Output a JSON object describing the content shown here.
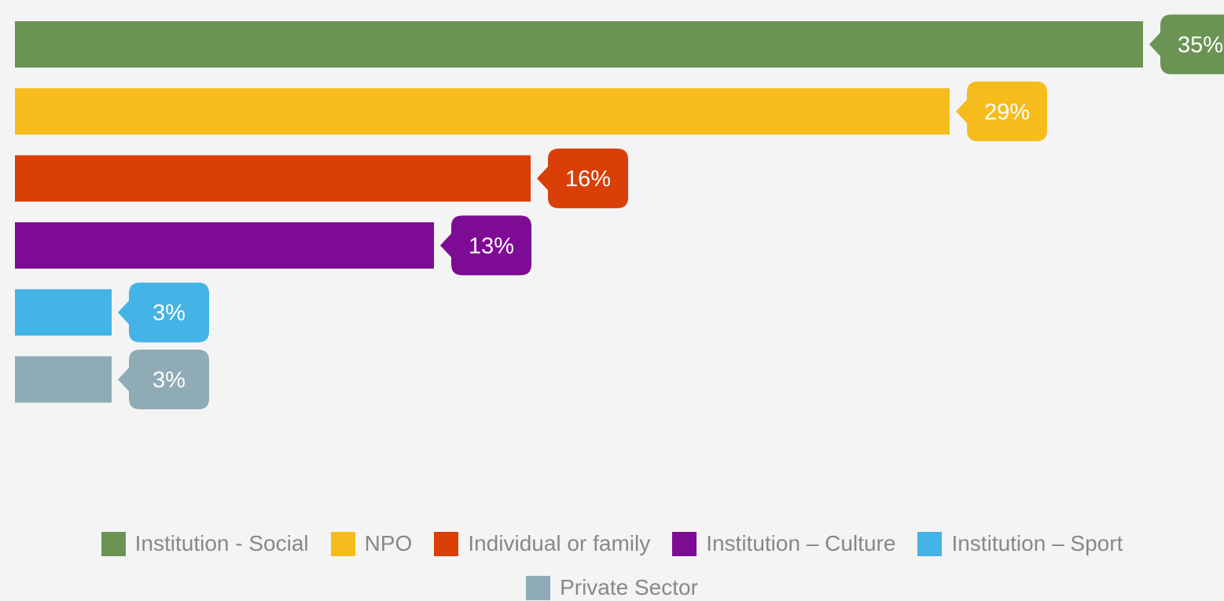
{
  "chart_data": {
    "type": "bar",
    "orientation": "horizontal",
    "categories": [
      "Institution - Social",
      "NPO",
      "Individual or family",
      "Institution – Culture",
      "Institution – Sport",
      "Private Sector"
    ],
    "values": [
      35,
      29,
      16,
      13,
      3,
      3
    ],
    "data_labels": [
      "35%",
      "29%",
      "16%",
      "13%",
      "3%",
      "3%"
    ],
    "colors": [
      "#6b9454",
      "#f6bc1b",
      "#d93f06",
      "#7e0b94",
      "#44b3e6",
      "#8fabb6"
    ],
    "unit": "%",
    "xlim": [
      0,
      35
    ],
    "grid": false,
    "legend_position": "bottom",
    "title": "",
    "xlabel": "",
    "ylabel": ""
  }
}
